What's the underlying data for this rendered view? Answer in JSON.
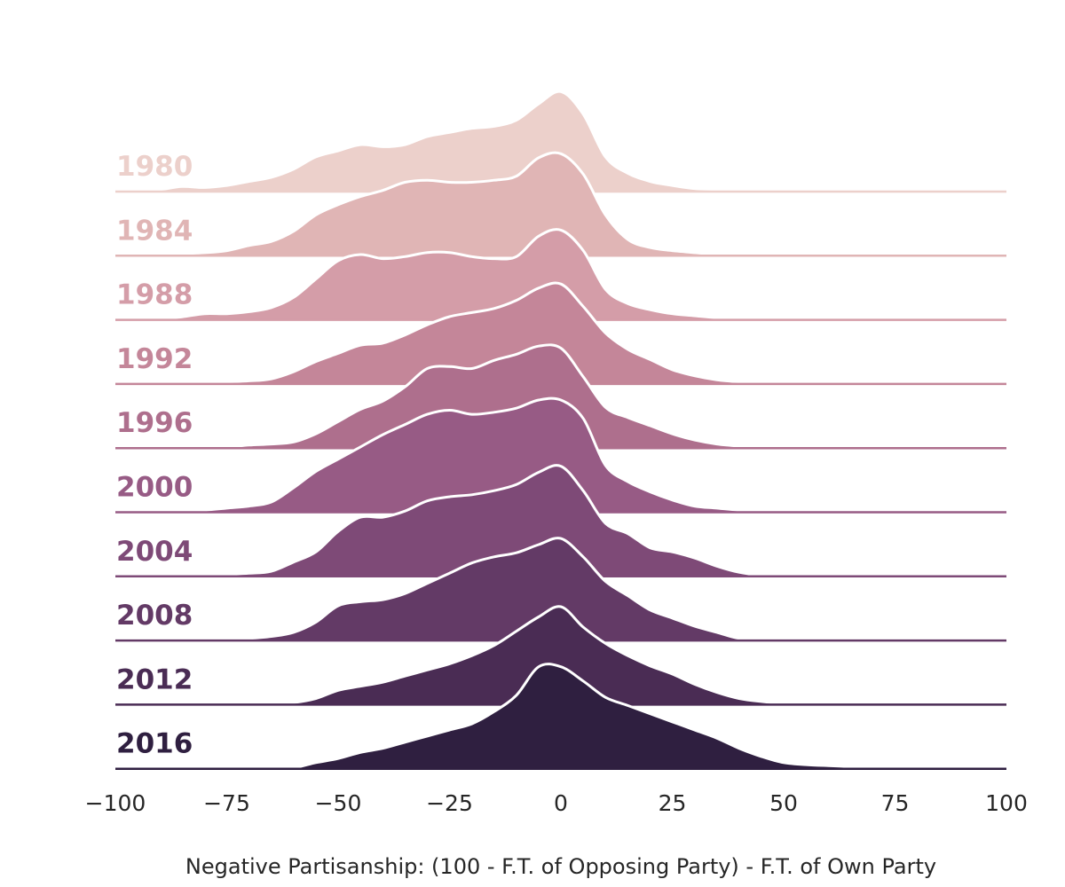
{
  "chart_data": {
    "type": "ridgeline",
    "title": "",
    "xlabel": "Negative Partisanship: (100 - F.T. of Opposing Party) - F.T. of Own Party",
    "ylabel": "",
    "xlim": [
      -100,
      100
    ],
    "xticks": [
      -100,
      -75,
      -50,
      -25,
      0,
      25,
      50,
      75,
      100
    ],
    "xtick_labels": [
      "−100",
      "−75",
      "−50",
      "−25",
      "0",
      "25",
      "50",
      "75",
      "100"
    ],
    "grid": false,
    "x": [
      -100,
      -95,
      -90,
      -85,
      -80,
      -75,
      -70,
      -65,
      -60,
      -55,
      -50,
      -45,
      -40,
      -35,
      -30,
      -25,
      -20,
      -15,
      -10,
      -5,
      0,
      5,
      10,
      15,
      20,
      25,
      30,
      35,
      40,
      45,
      50,
      55,
      60,
      65,
      70,
      75,
      80,
      85,
      90,
      95,
      100
    ],
    "series": [
      {
        "name": "1980",
        "color": "#ecd0cb",
        "values": [
          0.01,
          0.01,
          0.02,
          0.05,
          0.04,
          0.06,
          0.1,
          0.14,
          0.22,
          0.34,
          0.4,
          0.46,
          0.44,
          0.46,
          0.54,
          0.58,
          0.62,
          0.64,
          0.7,
          0.86,
          0.98,
          0.76,
          0.34,
          0.18,
          0.1,
          0.06,
          0.03,
          0.02,
          0.01,
          0.01,
          0.0,
          0.0,
          0.0,
          0.0,
          0.0,
          0.0,
          0.0,
          0.0,
          0.0,
          0.0,
          0.0
        ]
      },
      {
        "name": "1984",
        "color": "#e0b5b5",
        "values": [
          0.0,
          0.0,
          0.01,
          0.02,
          0.03,
          0.05,
          0.1,
          0.14,
          0.24,
          0.4,
          0.5,
          0.58,
          0.64,
          0.72,
          0.74,
          0.72,
          0.72,
          0.74,
          0.78,
          0.96,
          1.0,
          0.8,
          0.4,
          0.16,
          0.08,
          0.05,
          0.03,
          0.01,
          0.0,
          0.0,
          0.0,
          0.0,
          0.0,
          0.0,
          0.0,
          0.0,
          0.0,
          0.0,
          0.0,
          0.0,
          0.0
        ]
      },
      {
        "name": "1988",
        "color": "#d49da8",
        "values": [
          0.0,
          0.0,
          0.01,
          0.03,
          0.06,
          0.06,
          0.08,
          0.12,
          0.22,
          0.4,
          0.58,
          0.64,
          0.6,
          0.62,
          0.66,
          0.66,
          0.62,
          0.6,
          0.62,
          0.82,
          0.88,
          0.68,
          0.3,
          0.16,
          0.1,
          0.06,
          0.04,
          0.02,
          0.01,
          0.0,
          0.0,
          0.0,
          0.0,
          0.0,
          0.0,
          0.0,
          0.0,
          0.0,
          0.0,
          0.0,
          0.0
        ]
      },
      {
        "name": "1992",
        "color": "#c48699",
        "values": [
          0.0,
          0.0,
          0.0,
          0.01,
          0.01,
          0.02,
          0.03,
          0.05,
          0.12,
          0.22,
          0.3,
          0.38,
          0.4,
          0.48,
          0.58,
          0.66,
          0.7,
          0.74,
          0.82,
          0.94,
          0.98,
          0.76,
          0.5,
          0.34,
          0.24,
          0.14,
          0.08,
          0.04,
          0.02,
          0.01,
          0.0,
          0.0,
          0.0,
          0.0,
          0.0,
          0.0,
          0.0,
          0.0,
          0.0,
          0.0,
          0.0
        ]
      },
      {
        "name": "1996",
        "color": "#ae6f8d",
        "values": [
          0.0,
          0.0,
          0.0,
          0.0,
          0.01,
          0.01,
          0.03,
          0.04,
          0.06,
          0.14,
          0.26,
          0.38,
          0.46,
          0.6,
          0.78,
          0.8,
          0.78,
          0.86,
          0.92,
          1.0,
          0.98,
          0.7,
          0.4,
          0.3,
          0.22,
          0.14,
          0.08,
          0.04,
          0.02,
          0.01,
          0.0,
          0.0,
          0.0,
          0.0,
          0.0,
          0.0,
          0.0,
          0.0,
          0.0,
          0.0,
          0.0
        ]
      },
      {
        "name": "2000",
        "color": "#975b85",
        "values": [
          0.0,
          0.0,
          0.0,
          0.01,
          0.02,
          0.04,
          0.06,
          0.1,
          0.24,
          0.4,
          0.52,
          0.64,
          0.76,
          0.86,
          0.96,
          1.0,
          0.96,
          0.98,
          1.02,
          1.1,
          1.1,
          0.92,
          0.46,
          0.3,
          0.2,
          0.12,
          0.06,
          0.04,
          0.02,
          0.01,
          0.0,
          0.0,
          0.0,
          0.0,
          0.0,
          0.0,
          0.0,
          0.0,
          0.0,
          0.0,
          0.0
        ]
      },
      {
        "name": "2004",
        "color": "#7e4a77",
        "values": [
          0.0,
          0.0,
          0.0,
          0.0,
          0.01,
          0.02,
          0.03,
          0.05,
          0.14,
          0.24,
          0.44,
          0.58,
          0.58,
          0.64,
          0.74,
          0.78,
          0.8,
          0.84,
          0.9,
          1.02,
          1.08,
          0.84,
          0.52,
          0.42,
          0.28,
          0.24,
          0.18,
          0.1,
          0.04,
          0.01,
          0.0,
          0.0,
          0.0,
          0.0,
          0.0,
          0.0,
          0.0,
          0.0,
          0.0,
          0.0,
          0.0
        ]
      },
      {
        "name": "2008",
        "color": "#633a66",
        "values": [
          0.0,
          0.0,
          0.0,
          0.0,
          0.0,
          0.01,
          0.02,
          0.04,
          0.08,
          0.18,
          0.34,
          0.38,
          0.4,
          0.46,
          0.56,
          0.66,
          0.76,
          0.82,
          0.86,
          0.94,
          1.0,
          0.82,
          0.58,
          0.44,
          0.3,
          0.22,
          0.14,
          0.08,
          0.02,
          0.01,
          0.0,
          0.0,
          0.0,
          0.0,
          0.0,
          0.0,
          0.0,
          0.0,
          0.0,
          0.0,
          0.0
        ]
      },
      {
        "name": "2012",
        "color": "#4a2c54",
        "values": [
          0.0,
          0.0,
          0.0,
          0.0,
          0.0,
          0.0,
          0.01,
          0.01,
          0.02,
          0.06,
          0.14,
          0.18,
          0.22,
          0.28,
          0.34,
          0.4,
          0.48,
          0.58,
          0.72,
          0.86,
          0.96,
          0.76,
          0.6,
          0.48,
          0.38,
          0.3,
          0.2,
          0.12,
          0.06,
          0.03,
          0.01,
          0.0,
          0.0,
          0.0,
          0.0,
          0.0,
          0.0,
          0.0,
          0.0,
          0.0,
          0.0
        ]
      },
      {
        "name": "2016",
        "color": "#2f1f40",
        "values": [
          0.0,
          0.0,
          0.0,
          0.0,
          0.0,
          0.0,
          0.01,
          0.01,
          0.01,
          0.06,
          0.1,
          0.16,
          0.2,
          0.26,
          0.32,
          0.38,
          0.44,
          0.56,
          0.72,
          1.0,
          1.0,
          0.86,
          0.7,
          0.62,
          0.54,
          0.46,
          0.38,
          0.3,
          0.2,
          0.12,
          0.06,
          0.04,
          0.03,
          0.02,
          0.01,
          0.0,
          0.0,
          0.0,
          0.0,
          0.0,
          0.0
        ]
      }
    ]
  }
}
